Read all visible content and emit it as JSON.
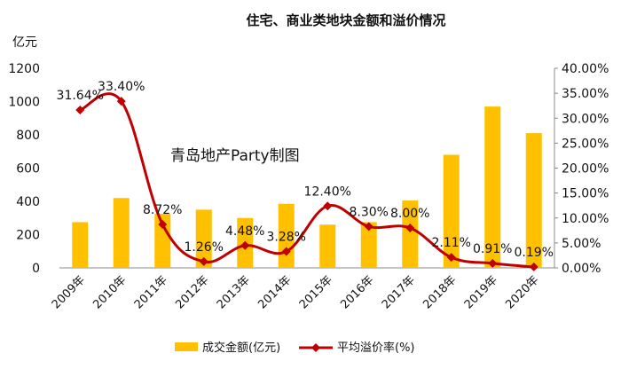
{
  "chart_data": {
    "type": "bar",
    "title": "住宅、商业类地块金额和溢价情况",
    "y_unit": "亿元",
    "watermark": "青岛地产Party制图",
    "categories": [
      "2009年",
      "2010年",
      "2011年",
      "2012年",
      "2013年",
      "2014年",
      "2015年",
      "2016年",
      "2017年",
      "2018年",
      "2019年",
      "2020年"
    ],
    "left_axis": {
      "ylim": [
        0,
        1200
      ],
      "ticks": [
        "0",
        "200",
        "400",
        "600",
        "800",
        "1000",
        "1200"
      ]
    },
    "right_axis": {
      "ylim": [
        0,
        40
      ],
      "ticks": [
        "0.00%",
        "5.00%",
        "10.00%",
        "15.00%",
        "20.00%",
        "25.00%",
        "30.00%",
        "35.00%",
        "40.00%"
      ]
    },
    "series": [
      {
        "name": "成交金额(亿元)",
        "type": "bar",
        "axis": "left",
        "color": "#FFC000",
        "values": [
          275,
          420,
          325,
          350,
          300,
          385,
          260,
          275,
          405,
          680,
          970,
          810
        ]
      },
      {
        "name": "平均溢价率(%)",
        "type": "line",
        "axis": "right",
        "color": "#C00000",
        "values": [
          31.64,
          33.4,
          8.72,
          1.26,
          4.48,
          3.28,
          12.4,
          8.3,
          8.0,
          2.11,
          0.91,
          0.19
        ],
        "labels": [
          "31.64%",
          "33.40%",
          "8.72%",
          "1.26%",
          "4.48%",
          "3.28%",
          "12.40%",
          "8.30%",
          "8.00%",
          "2.11%",
          "0.91%",
          "0.19%"
        ]
      }
    ],
    "legend_position": "bottom",
    "grid": false
  }
}
